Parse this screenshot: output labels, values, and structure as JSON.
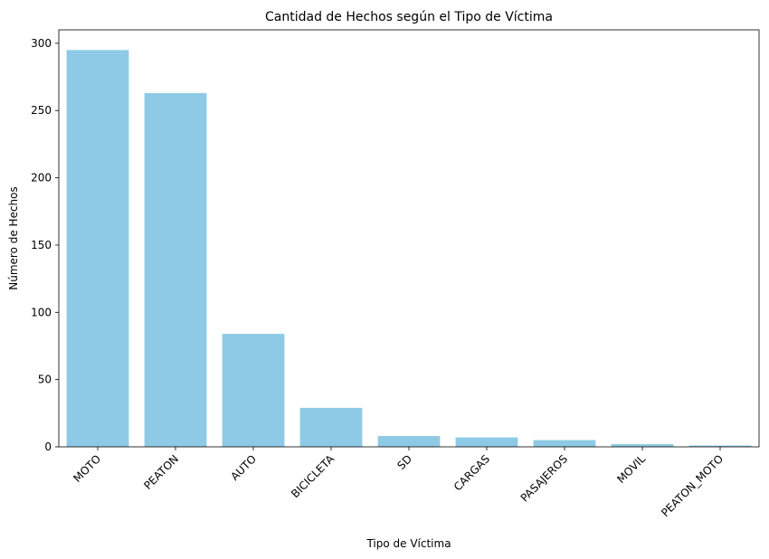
{
  "chart_data": {
    "type": "bar",
    "title": "Cantidad de Hechos según el Tipo de Víctima",
    "xlabel": "Tipo de Víctima",
    "ylabel": "Número de Hechos",
    "categories": [
      "MOTO",
      "PEATON",
      "AUTO",
      "BICICLETA",
      "SD",
      "CARGAS",
      "PASAJEROS",
      "MOVIL",
      "PEATON_MOTO"
    ],
    "values": [
      295,
      263,
      84,
      29,
      8,
      7,
      5,
      2,
      1
    ],
    "ylim": [
      0,
      310
    ],
    "yticks": [
      0,
      50,
      100,
      150,
      200,
      250,
      300
    ],
    "bar_color": "#8ecae6",
    "grid": false,
    "legend": "none"
  }
}
